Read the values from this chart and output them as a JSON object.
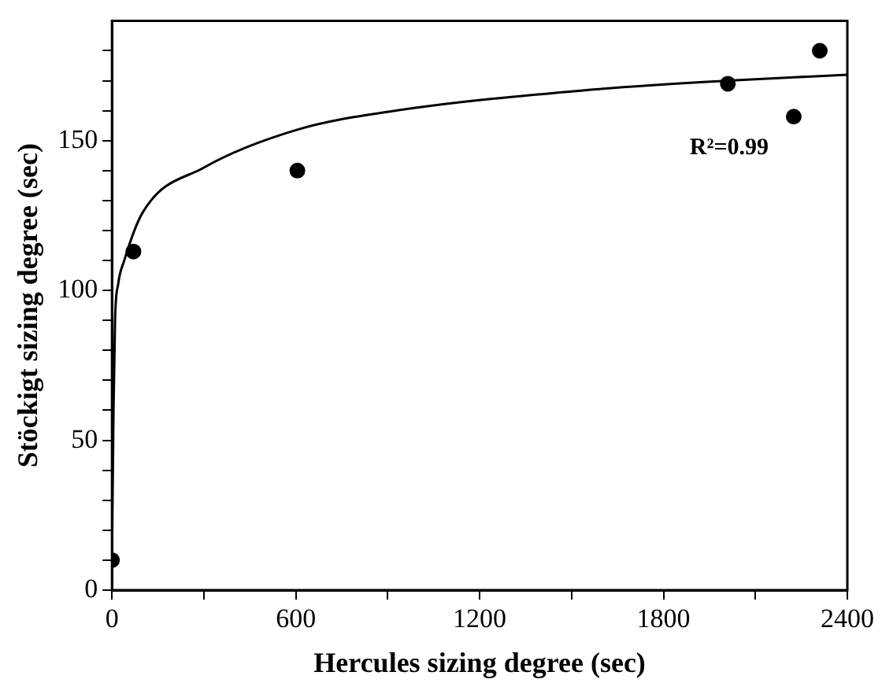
{
  "chart_data": {
    "type": "scatter",
    "xlabel": "Hercules sizing degree (sec)",
    "ylabel": "Stöckigt sizing degree (sec)",
    "xlim": [
      0,
      2400
    ],
    "ylim": [
      0,
      190
    ],
    "xticks": [
      0,
      {
        "value": 300,
        "label": null
      },
      600,
      {
        "value": 900,
        "label": null
      },
      1200,
      {
        "value": 1500,
        "label": null
      },
      1800,
      {
        "value": 2100,
        "label": null
      },
      2400
    ],
    "yticks": [
      0,
      {
        "value": 10,
        "label": null
      },
      {
        "value": 20,
        "label": null
      },
      {
        "value": 30,
        "label": null
      },
      {
        "value": 40,
        "label": null
      },
      50,
      {
        "value": 60,
        "label": null
      },
      {
        "value": 70,
        "label": null
      },
      {
        "value": 80,
        "label": null
      },
      {
        "value": 90,
        "label": null
      },
      100,
      {
        "value": 110,
        "label": null
      },
      {
        "value": 120,
        "label": null
      },
      {
        "value": 130,
        "label": null
      },
      {
        "value": 140,
        "label": null
      },
      150,
      {
        "value": 160,
        "label": null
      },
      {
        "value": 170,
        "label": null
      },
      {
        "value": 180,
        "label": null
      }
    ],
    "annotations": [
      "R²=0.99"
    ],
    "series": [
      {
        "marker": "circle",
        "color": "#000000",
        "x": [
          0,
          70,
          605,
          2010,
          2225,
          2310
        ],
        "values": [
          10,
          113,
          140,
          169,
          158,
          180
        ]
      },
      {
        "type": "line",
        "marker": "none",
        "color": "#000000",
        "x": [
          0,
          5,
          10,
          20,
          40,
          100,
          300,
          600,
          925,
          1530,
          2010,
          2400
        ],
        "values": [
          10,
          60,
          90,
          102,
          110,
          126,
          141,
          153.5,
          160,
          166.7,
          170,
          172
        ]
      }
    ]
  }
}
